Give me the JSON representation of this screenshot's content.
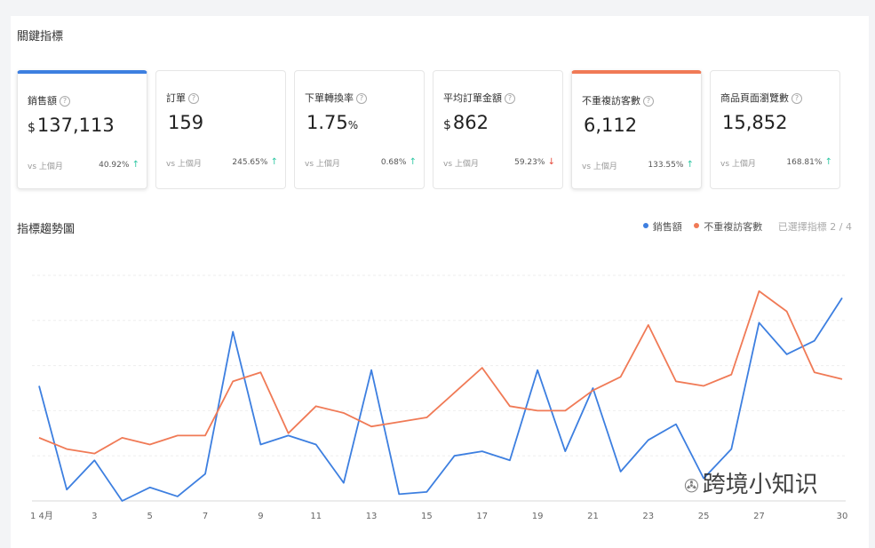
{
  "section_title": "關鍵指標",
  "cards": [
    {
      "label": "銷售額",
      "prefix": "$",
      "value": "137,113",
      "suffix": "",
      "vs": "vs 上個月",
      "pct": "40.92%",
      "dir": "up",
      "selected": "blue"
    },
    {
      "label": "訂單",
      "prefix": "",
      "value": "159",
      "suffix": "",
      "vs": "vs 上個月",
      "pct": "245.65%",
      "dir": "up",
      "selected": ""
    },
    {
      "label": "下單轉換率",
      "prefix": "",
      "value": "1.75",
      "suffix": "%",
      "vs": "vs 上個月",
      "pct": "0.68%",
      "dir": "up",
      "selected": ""
    },
    {
      "label": "平均訂單金額",
      "prefix": "$",
      "value": "862",
      "suffix": "",
      "vs": "vs 上個月",
      "pct": "59.23%",
      "dir": "down",
      "selected": ""
    },
    {
      "label": "不重複訪客數",
      "prefix": "",
      "value": "6,112",
      "suffix": "",
      "vs": "vs 上個月",
      "pct": "133.55%",
      "dir": "up",
      "selected": "orange"
    },
    {
      "label": "商品頁面瀏覽數",
      "prefix": "",
      "value": "15,852",
      "suffix": "",
      "vs": "vs 上個月",
      "pct": "168.81%",
      "dir": "up",
      "selected": ""
    }
  ],
  "trend": {
    "title": "指標趨勢圖",
    "selected_text": "已選擇指標 2 / 4"
  },
  "watermark": "跨境小知识",
  "colors": {
    "blue": "#3d7fe0",
    "orange": "#f07a56",
    "up": "#2ec7a3",
    "down": "#e5483a"
  },
  "chart_data": {
    "type": "line",
    "x": [
      1,
      2,
      3,
      4,
      5,
      6,
      7,
      8,
      9,
      10,
      11,
      12,
      13,
      14,
      15,
      16,
      17,
      18,
      19,
      20,
      21,
      22,
      23,
      24,
      25,
      26,
      27,
      28,
      29,
      30
    ],
    "x_tick_labels": [
      "1 4月",
      "3",
      "5",
      "7",
      "9",
      "11",
      "13",
      "15",
      "17",
      "19",
      "21",
      "23",
      "25",
      "27",
      "30"
    ],
    "x_tick_values": [
      1,
      3,
      5,
      7,
      9,
      11,
      13,
      15,
      17,
      19,
      21,
      23,
      25,
      27,
      30
    ],
    "ylim": [
      0,
      100
    ],
    "grid": true,
    "legend": "top-right",
    "series": [
      {
        "name": "銷售額",
        "color": "#3d7fe0",
        "values": [
          51,
          5,
          18,
          0,
          6,
          2,
          12,
          75,
          25,
          29,
          25,
          8,
          58,
          3,
          4,
          20,
          22,
          18,
          58,
          22,
          50,
          13,
          27,
          34,
          10,
          23,
          79,
          65,
          71,
          90
        ]
      },
      {
        "name": "不重複訪客數",
        "color": "#f07a56",
        "values": [
          28,
          23,
          21,
          28,
          25,
          29,
          29,
          53,
          57,
          30,
          42,
          39,
          33,
          35,
          37,
          48,
          59,
          42,
          40,
          40,
          49,
          55,
          78,
          53,
          51,
          56,
          93,
          84,
          57,
          54
        ]
      }
    ]
  }
}
